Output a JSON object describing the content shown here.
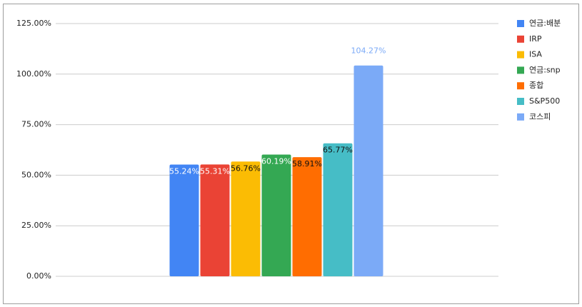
{
  "chart_data": {
    "type": "bar",
    "categories": [
      null
    ],
    "series": [
      {
        "name": "연금:배분",
        "color": "#4285f4",
        "values": [
          55.24
        ],
        "value_labels": [
          "55.24%"
        ]
      },
      {
        "name": "IRP",
        "color": "#ea4335",
        "values": [
          55.31
        ],
        "value_labels": [
          "55.31%"
        ]
      },
      {
        "name": "ISA",
        "color": "#fbbc04",
        "values": [
          56.76
        ],
        "value_labels": [
          "56.76%"
        ]
      },
      {
        "name": "연금:snp",
        "color": "#34a853",
        "values": [
          60.19
        ],
        "value_labels": [
          "60.19%"
        ]
      },
      {
        "name": "종합",
        "color": "#ff6d01",
        "values": [
          58.91
        ],
        "value_labels": [
          "58.91%"
        ]
      },
      {
        "name": "S&P500",
        "color": "#46bdc6",
        "values": [
          65.77
        ],
        "value_labels": [
          "65.77%"
        ]
      },
      {
        "name": "코스피",
        "color": "#7baaf7",
        "values": [
          104.27
        ],
        "value_labels": [
          "104.27%"
        ]
      }
    ],
    "ylim": [
      0,
      125
    ],
    "yticks": [
      {
        "value": 0,
        "label": "0.00%"
      },
      {
        "value": 25,
        "label": "25.00%"
      },
      {
        "value": 50,
        "label": "50.00%"
      },
      {
        "value": 75,
        "label": "75.00%"
      },
      {
        "value": 100,
        "label": "100.00%"
      },
      {
        "value": 125,
        "label": "125.00%"
      }
    ],
    "grid": true,
    "legend": "right"
  }
}
